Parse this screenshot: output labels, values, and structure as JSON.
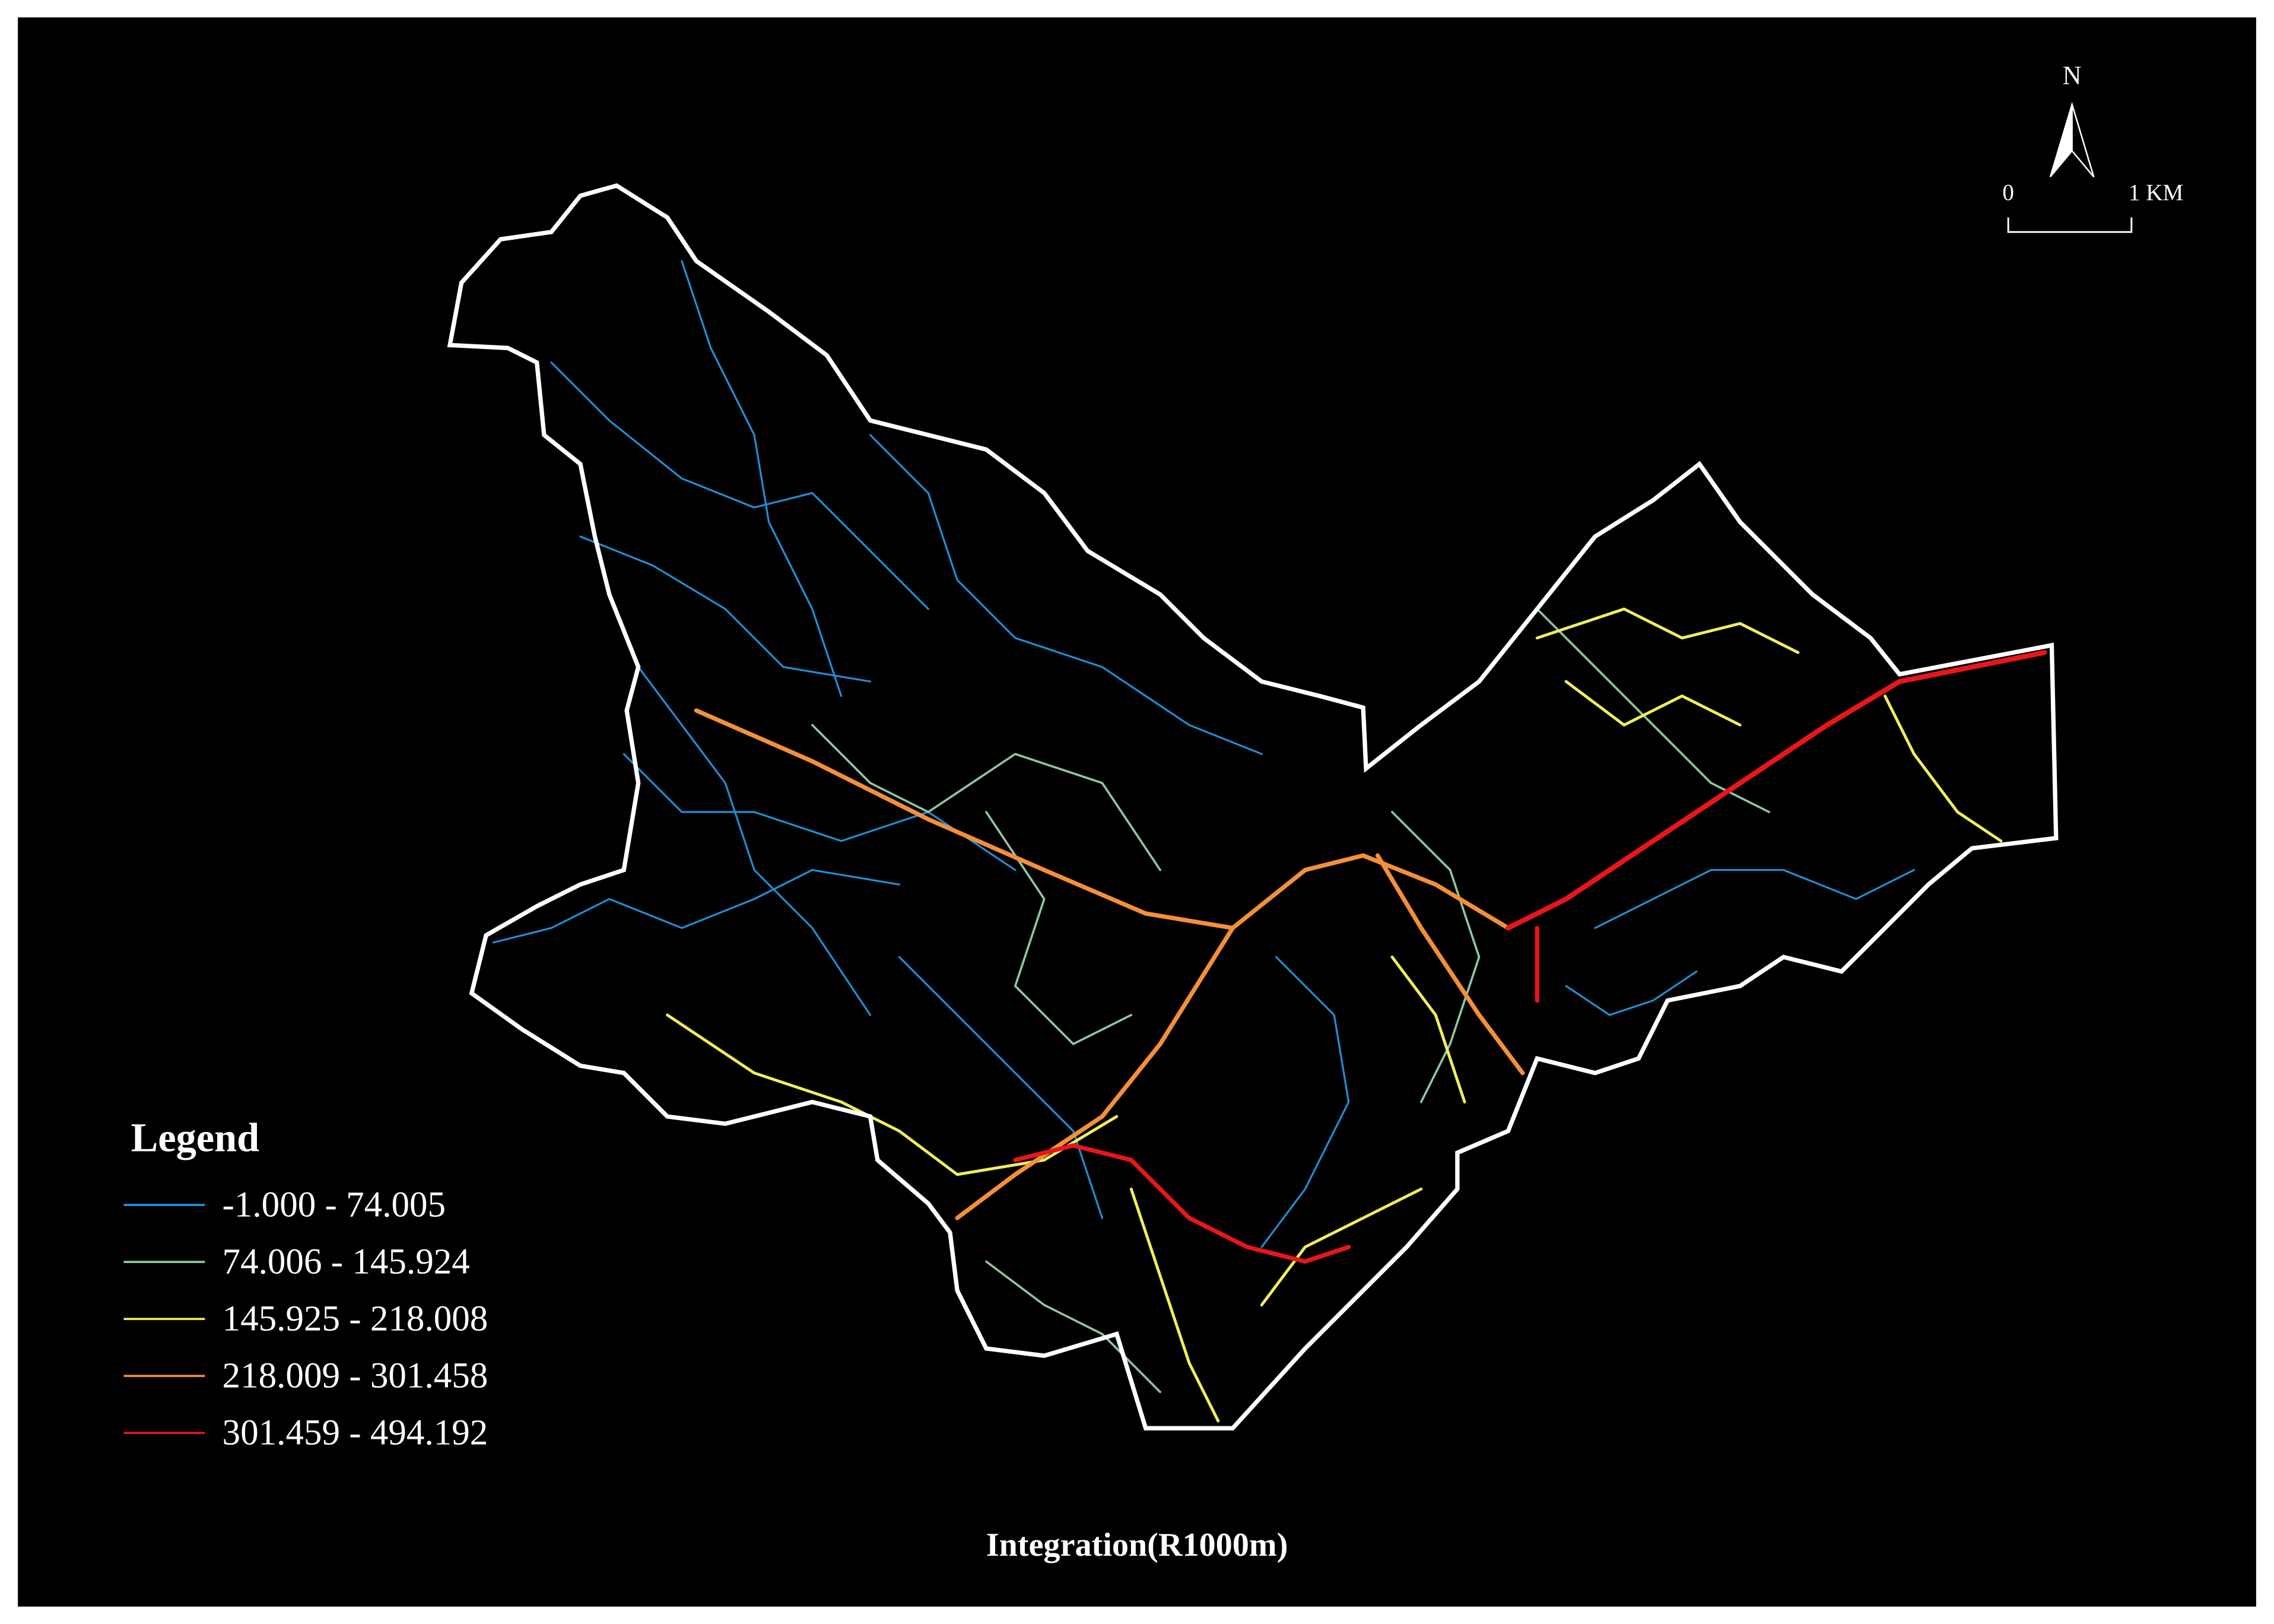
{
  "legend": {
    "title": "Legend",
    "items": [
      {
        "label": "-1.000 - 74.005",
        "color": "#1e90d8"
      },
      {
        "label": "74.006 - 145.924",
        "color": "#8fc7a0"
      },
      {
        "label": "145.925 - 218.008",
        "color": "#f2ee5c"
      },
      {
        "label": "218.009 - 301.458",
        "color": "#f48f3a"
      },
      {
        "label": "301.459 - 494.192",
        "color": "#e8161a"
      }
    ]
  },
  "north_label": "N",
  "scale_bar": {
    "start": "0",
    "end": "1 KM"
  },
  "caption": "Integration(R1000m)"
}
